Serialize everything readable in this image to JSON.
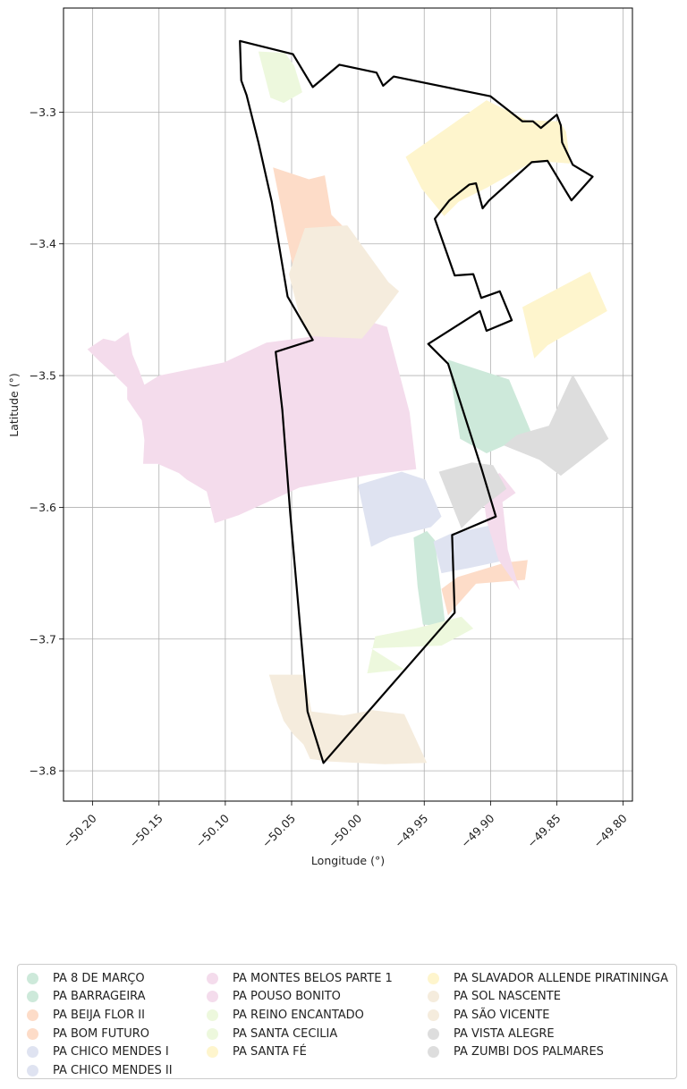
{
  "chart_data": {
    "type": "map",
    "xlabel": "Longitude (°)",
    "ylabel": "Latitude (°)",
    "xlim": [
      -50.222,
      -49.793
    ],
    "ylim": [
      -3.823,
      -3.221
    ],
    "x_ticks": [
      {
        "value": -50.2,
        "label": "−50.20"
      },
      {
        "value": -50.15,
        "label": "−50.15"
      },
      {
        "value": -50.1,
        "label": "−50.10"
      },
      {
        "value": -50.05,
        "label": "−50.05"
      },
      {
        "value": -50.0,
        "label": "−50.00"
      },
      {
        "value": -49.95,
        "label": "−49.95"
      },
      {
        "value": -49.9,
        "label": "−49.90"
      },
      {
        "value": -49.85,
        "label": "−49.85"
      },
      {
        "value": -49.8,
        "label": "−49.80"
      }
    ],
    "y_ticks": [
      {
        "value": -3.3,
        "label": "−3.3"
      },
      {
        "value": -3.4,
        "label": "−3.4"
      },
      {
        "value": -3.5,
        "label": "−3.5"
      },
      {
        "value": -3.6,
        "label": "−3.6"
      },
      {
        "value": -3.7,
        "label": "−3.7"
      },
      {
        "value": -3.8,
        "label": "−3.8"
      }
    ],
    "grid": true,
    "legend_position": "bottom",
    "categories": [
      {
        "name": "PA 8 DE MARÇO",
        "color": "#cde9da",
        "coords": [
          [
            -49.932,
            -3.488
          ],
          [
            -49.886,
            -3.503
          ],
          [
            -49.869,
            -3.544
          ],
          [
            -49.903,
            -3.559
          ],
          [
            -49.923,
            -3.548
          ]
        ]
      },
      {
        "name": "PA BARRAGEIRA",
        "color": "#cde9da",
        "coords": [
          [
            -49.958,
            -3.623
          ],
          [
            -49.948,
            -3.618
          ],
          [
            -49.942,
            -3.625
          ],
          [
            -49.934,
            -3.69
          ],
          [
            -49.951,
            -3.689
          ],
          [
            -49.955,
            -3.66
          ]
        ]
      },
      {
        "name": "PA BEIJA FLOR II",
        "color": "#fddcc8",
        "coords": [
          [
            -49.937,
            -3.662
          ],
          [
            -49.925,
            -3.653
          ],
          [
            -49.889,
            -3.642
          ],
          [
            -49.872,
            -3.64
          ],
          [
            -49.874,
            -3.655
          ],
          [
            -49.911,
            -3.658
          ],
          [
            -49.932,
            -3.682
          ]
        ]
      },
      {
        "name": "PA BOM FUTURO",
        "color": "#fddcc8",
        "coords": [
          [
            -50.064,
            -3.342
          ],
          [
            -50.037,
            -3.351
          ],
          [
            -50.025,
            -3.348
          ],
          [
            -50.02,
            -3.378
          ],
          [
            -50.008,
            -3.39
          ],
          [
            -50.031,
            -3.405
          ],
          [
            -50.049,
            -3.418
          ]
        ]
      },
      {
        "name": "PA CHICO MENDES I",
        "color": "#dfe3f1",
        "coords": [
          [
            -50.0,
            -3.583
          ],
          [
            -49.967,
            -3.573
          ],
          [
            -49.949,
            -3.579
          ],
          [
            -49.937,
            -3.607
          ],
          [
            -49.945,
            -3.615
          ],
          [
            -49.976,
            -3.623
          ],
          [
            -49.99,
            -3.63
          ]
        ]
      },
      {
        "name": "PA CHICO MENDES II",
        "color": "#dfe3f1",
        "coords": [
          [
            -49.943,
            -3.626
          ],
          [
            -49.93,
            -3.62
          ],
          [
            -49.902,
            -3.614
          ],
          [
            -49.889,
            -3.616
          ],
          [
            -49.888,
            -3.64
          ],
          [
            -49.916,
            -3.646
          ],
          [
            -49.937,
            -3.65
          ]
        ]
      },
      {
        "name": "PA MONTES BELOS PARTE 1",
        "color": "#f4dcec",
        "coords": [
          [
            -49.907,
            -3.58
          ],
          [
            -49.893,
            -3.574
          ],
          [
            -49.881,
            -3.589
          ],
          [
            -49.891,
            -3.596
          ],
          [
            -49.887,
            -3.632
          ],
          [
            -49.878,
            -3.663
          ],
          [
            -49.894,
            -3.64
          ],
          [
            -49.903,
            -3.61
          ]
        ]
      },
      {
        "name": "PA POUSO BONITO",
        "color": "#f4dcec",
        "coords": [
          [
            -50.204,
            -3.48
          ],
          [
            -50.192,
            -3.472
          ],
          [
            -50.183,
            -3.474
          ],
          [
            -50.173,
            -3.467
          ],
          [
            -50.17,
            -3.484
          ],
          [
            -50.165,
            -3.496
          ],
          [
            -50.161,
            -3.507
          ],
          [
            -50.15,
            -3.5
          ],
          [
            -50.101,
            -3.49
          ],
          [
            -50.069,
            -3.475
          ],
          [
            -50.039,
            -3.471
          ],
          [
            -49.988,
            -3.46
          ],
          [
            -49.978,
            -3.463
          ],
          [
            -49.961,
            -3.528
          ],
          [
            -49.956,
            -3.571
          ],
          [
            -49.99,
            -3.575
          ],
          [
            -50.044,
            -3.585
          ],
          [
            -50.09,
            -3.606
          ],
          [
            -50.108,
            -3.612
          ],
          [
            -50.114,
            -3.588
          ],
          [
            -50.129,
            -3.579
          ],
          [
            -50.135,
            -3.574
          ],
          [
            -50.151,
            -3.567
          ],
          [
            -50.162,
            -3.567
          ],
          [
            -50.161,
            -3.549
          ],
          [
            -50.163,
            -3.534
          ],
          [
            -50.174,
            -3.518
          ],
          [
            -50.174,
            -3.509
          ],
          [
            -50.183,
            -3.5
          ],
          [
            -50.195,
            -3.489
          ]
        ]
      },
      {
        "name": "PA REINO ENCANTADO",
        "color": "#edf8dd",
        "coords": [
          [
            -50.075,
            -3.254
          ],
          [
            -50.055,
            -3.255
          ],
          [
            -50.048,
            -3.265
          ],
          [
            -50.042,
            -3.285
          ],
          [
            -50.056,
            -3.293
          ],
          [
            -50.066,
            -3.289
          ]
        ]
      },
      {
        "name": "PA SANTA CECILIA",
        "color": "#edf8dd",
        "coords": [
          [
            -49.99,
            -3.707
          ],
          [
            -49.937,
            -3.705
          ],
          [
            -49.913,
            -3.692
          ],
          [
            -49.922,
            -3.683
          ],
          [
            -49.957,
            -3.692
          ],
          [
            -49.987,
            -3.698
          ],
          [
            -49.993,
            -3.726
          ],
          [
            -49.965,
            -3.723
          ]
        ]
      },
      {
        "name": "PA SANTA FÉ",
        "color": "#fef5cd",
        "coords": [
          [
            -49.964,
            -3.334
          ],
          [
            -49.903,
            -3.291
          ],
          [
            -49.873,
            -3.306
          ],
          [
            -49.848,
            -3.307
          ],
          [
            -49.843,
            -3.315
          ],
          [
            -49.84,
            -3.339
          ],
          [
            -49.867,
            -3.337
          ],
          [
            -49.902,
            -3.357
          ],
          [
            -49.924,
            -3.368
          ],
          [
            -49.935,
            -3.379
          ],
          [
            -49.952,
            -3.358
          ]
        ]
      },
      {
        "name": "PA SLAVADOR ALLENDE PIRATININGA",
        "color": "#fef5cd",
        "coords": [
          [
            -49.876,
            -3.448
          ],
          [
            -49.825,
            -3.421
          ],
          [
            -49.812,
            -3.451
          ],
          [
            -49.857,
            -3.477
          ],
          [
            -49.867,
            -3.487
          ]
        ]
      },
      {
        "name": "PA SOL NASCENTE",
        "color": "#f5ecdd",
        "coords": [
          [
            -50.04,
            -3.388
          ],
          [
            -50.008,
            -3.386
          ],
          [
            -49.977,
            -3.429
          ],
          [
            -49.969,
            -3.436
          ],
          [
            -49.984,
            -3.456
          ],
          [
            -49.997,
            -3.472
          ],
          [
            -50.037,
            -3.47
          ],
          [
            -50.045,
            -3.451
          ],
          [
            -50.052,
            -3.423
          ]
        ]
      },
      {
        "name": "PA SÃO VICENTE",
        "color": "#f5ecdd",
        "coords": [
          [
            -50.067,
            -3.727
          ],
          [
            -50.04,
            -3.727
          ],
          [
            -50.035,
            -3.755
          ],
          [
            -50.011,
            -3.758
          ],
          [
            -49.989,
            -3.754
          ],
          [
            -49.965,
            -3.757
          ],
          [
            -49.959,
            -3.77
          ],
          [
            -49.948,
            -3.794
          ],
          [
            -49.98,
            -3.795
          ],
          [
            -50.021,
            -3.793
          ],
          [
            -50.036,
            -3.791
          ],
          [
            -50.041,
            -3.78
          ],
          [
            -50.049,
            -3.772
          ],
          [
            -50.056,
            -3.762
          ],
          [
            -50.061,
            -3.748
          ]
        ]
      },
      {
        "name": "PA VISTA ALEGRE",
        "color": "#dddddd",
        "coords": [
          [
            -49.89,
            -3.553
          ],
          [
            -49.88,
            -3.545
          ],
          [
            -49.856,
            -3.538
          ],
          [
            -49.838,
            -3.499
          ],
          [
            -49.811,
            -3.548
          ],
          [
            -49.847,
            -3.576
          ],
          [
            -49.863,
            -3.564
          ]
        ]
      },
      {
        "name": "PA ZUMBI DOS PALMARES",
        "color": "#dddddd",
        "coords": [
          [
            -49.939,
            -3.573
          ],
          [
            -49.914,
            -3.566
          ],
          [
            -49.898,
            -3.568
          ],
          [
            -49.888,
            -3.586
          ],
          [
            -49.906,
            -3.6
          ],
          [
            -49.922,
            -3.616
          ]
        ]
      }
    ],
    "boundary": {
      "color": "#000000",
      "coords": [
        [
          -50.089,
          -3.246
        ],
        [
          -50.049,
          -3.256
        ],
        [
          -50.034,
          -3.281
        ],
        [
          -50.014,
          -3.264
        ],
        [
          -49.986,
          -3.27
        ],
        [
          -49.981,
          -3.28
        ],
        [
          -49.973,
          -3.273
        ],
        [
          -49.9,
          -3.288
        ],
        [
          -49.876,
          -3.307
        ],
        [
          -49.868,
          -3.307
        ],
        [
          -49.862,
          -3.312
        ],
        [
          -49.85,
          -3.302
        ],
        [
          -49.847,
          -3.31
        ],
        [
          -49.846,
          -3.323
        ],
        [
          -49.838,
          -3.34
        ],
        [
          -49.823,
          -3.349
        ],
        [
          -49.839,
          -3.367
        ],
        [
          -49.857,
          -3.337
        ],
        [
          -49.869,
          -3.338
        ],
        [
          -49.901,
          -3.367
        ],
        [
          -49.906,
          -3.373
        ],
        [
          -49.911,
          -3.354
        ],
        [
          -49.916,
          -3.355
        ],
        [
          -49.931,
          -3.367
        ],
        [
          -49.942,
          -3.381
        ],
        [
          -49.927,
          -3.424
        ],
        [
          -49.913,
          -3.423
        ],
        [
          -49.907,
          -3.441
        ],
        [
          -49.893,
          -3.436
        ],
        [
          -49.884,
          -3.458
        ],
        [
          -49.903,
          -3.466
        ],
        [
          -49.908,
          -3.451
        ],
        [
          -49.947,
          -3.476
        ],
        [
          -49.932,
          -3.491
        ],
        [
          -49.907,
          -3.57
        ],
        [
          -49.896,
          -3.607
        ],
        [
          -49.929,
          -3.621
        ],
        [
          -49.927,
          -3.68
        ],
        [
          -50.026,
          -3.794
        ],
        [
          -50.038,
          -3.755
        ],
        [
          -50.051,
          -3.605
        ],
        [
          -50.057,
          -3.526
        ],
        [
          -50.062,
          -3.482
        ],
        [
          -50.034,
          -3.473
        ],
        [
          -50.053,
          -3.44
        ],
        [
          -50.065,
          -3.368
        ],
        [
          -50.075,
          -3.323
        ],
        [
          -50.084,
          -3.287
        ],
        [
          -50.088,
          -3.276
        ]
      ]
    }
  }
}
